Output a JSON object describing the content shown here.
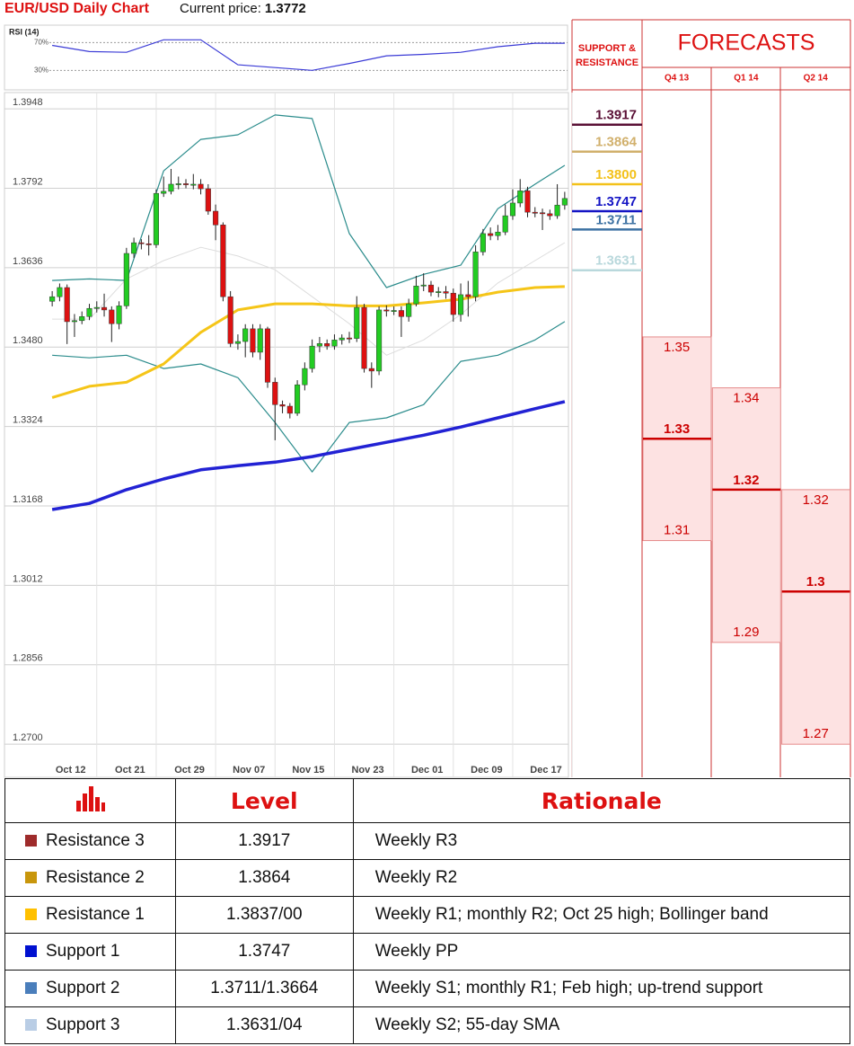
{
  "header": {
    "title": "EUR/USD Daily Chart",
    "price_label": "Current price:",
    "price": "1.3772"
  },
  "chart_data": [
    {
      "type": "line",
      "title": "RSI (14)",
      "color": "#3b3bd6",
      "ylim": [
        2,
        95
      ],
      "yticks": [
        {
          "value": 70,
          "label": "70%"
        },
        {
          "value": 30,
          "label": "30%"
        }
      ],
      "at": [
        0,
        5,
        10,
        15,
        20,
        25,
        30,
        35,
        40,
        45,
        50,
        55,
        60,
        65,
        69
      ],
      "values": [
        66,
        57,
        56,
        74,
        74,
        38,
        34,
        30,
        40,
        51,
        53,
        56,
        64,
        69,
        69
      ]
    },
    {
      "type": "candlestick",
      "ylim": [
        1.2665,
        1.398
      ],
      "grid": true,
      "yticks": [
        {
          "value": 1.3948,
          "label": "1.3948"
        },
        {
          "value": 1.3792,
          "label": "1.3792"
        },
        {
          "value": 1.3636,
          "label": "1.3636"
        },
        {
          "value": 1.348,
          "label": "1.3480"
        },
        {
          "value": 1.3324,
          "label": "1.3324"
        },
        {
          "value": 1.3168,
          "label": "1.3168"
        },
        {
          "value": 1.3012,
          "label": "1.3012"
        },
        {
          "value": 1.2856,
          "label": "1.2856"
        },
        {
          "value": 1.27,
          "label": "1.2700"
        }
      ],
      "categories": [
        null,
        null,
        "Oct 12",
        null,
        null,
        null,
        null,
        null,
        null,
        null,
        "Oct 21",
        null,
        null,
        null,
        null,
        null,
        null,
        null,
        "Oct 29",
        null,
        null,
        null,
        null,
        null,
        null,
        null,
        "Nov 07",
        null,
        null,
        null,
        null,
        null,
        null,
        null,
        "Nov 15",
        null,
        null,
        null,
        null,
        null,
        null,
        null,
        "Nov 23",
        null,
        null,
        null,
        null,
        null,
        null,
        null,
        "Dec 01",
        null,
        null,
        null,
        null,
        null,
        null,
        null,
        "Dec 09",
        null,
        null,
        null,
        null,
        null,
        null,
        null,
        "Dec 17",
        null,
        null,
        null
      ],
      "up_color": "#22cc22",
      "down_color": "#dd1111",
      "open": [
        1.357,
        1.3579,
        1.3597,
        1.353,
        1.3532,
        1.354,
        1.3556,
        1.3558,
        1.3553,
        1.3526,
        1.3561,
        1.3664,
        1.3685,
        1.3683,
        1.3681,
        1.3782,
        1.3786,
        1.38,
        1.3801,
        1.3799,
        1.38,
        1.3791,
        1.3747,
        1.372,
        1.3579,
        1.3487,
        1.3491,
        1.3516,
        1.347,
        1.3516,
        1.3411,
        1.3367,
        1.3364,
        1.335,
        1.3406,
        1.3438,
        1.3482,
        1.3487,
        1.3482,
        1.3494,
        1.3498,
        1.3497,
        1.3558,
        1.3438,
        1.3433,
        1.3553,
        1.3551,
        1.3552,
        1.354,
        1.3565,
        1.36,
        1.3602,
        1.3588,
        1.3589,
        1.3586,
        1.3544,
        1.3583,
        1.3579,
        1.3667,
        1.3703,
        1.3699,
        1.3706,
        1.3738,
        1.3763,
        1.3787,
        1.3745,
        1.3744,
        1.3742,
        1.3738,
        1.3759
      ],
      "high": [
        1.359,
        1.3605,
        1.3603,
        1.3545,
        1.355,
        1.3565,
        1.357,
        1.3585,
        1.356,
        1.357,
        1.3675,
        1.3695,
        1.3692,
        1.37,
        1.379,
        1.3815,
        1.383,
        1.3815,
        1.381,
        1.382,
        1.381,
        1.38,
        1.376,
        1.3725,
        1.359,
        1.3505,
        1.3525,
        1.3525,
        1.3525,
        1.352,
        1.342,
        1.3375,
        1.337,
        1.3415,
        1.345,
        1.3495,
        1.35,
        1.3495,
        1.3505,
        1.3505,
        1.351,
        1.358,
        1.3565,
        1.345,
        1.356,
        1.3562,
        1.356,
        1.356,
        1.3575,
        1.362,
        1.3625,
        1.361,
        1.3598,
        1.36,
        1.3595,
        1.3605,
        1.361,
        1.368,
        1.3712,
        1.3715,
        1.372,
        1.376,
        1.379,
        1.381,
        1.3795,
        1.3755,
        1.3752,
        1.375,
        1.38,
        1.3785
      ],
      "low": [
        1.356,
        1.357,
        1.3486,
        1.35,
        1.3525,
        1.3533,
        1.3548,
        1.354,
        1.349,
        1.3515,
        1.3555,
        1.3655,
        1.3672,
        1.366,
        1.3675,
        1.3775,
        1.378,
        1.379,
        1.3792,
        1.379,
        1.378,
        1.374,
        1.369,
        1.357,
        1.348,
        1.3475,
        1.346,
        1.346,
        1.3455,
        1.34,
        1.3297,
        1.335,
        1.334,
        1.3345,
        1.3395,
        1.343,
        1.347,
        1.3475,
        1.3475,
        1.3485,
        1.3488,
        1.349,
        1.343,
        1.34,
        1.3425,
        1.354,
        1.3543,
        1.35,
        1.353,
        1.356,
        1.359,
        1.358,
        1.3578,
        1.3575,
        1.353,
        1.353,
        1.354,
        1.357,
        1.366,
        1.369,
        1.369,
        1.37,
        1.373,
        1.3755,
        1.3735,
        1.3735,
        1.371,
        1.373,
        1.3732,
        1.375
      ],
      "close": [
        1.3579,
        1.3597,
        1.353,
        1.3532,
        1.354,
        1.3556,
        1.3558,
        1.3553,
        1.3526,
        1.3561,
        1.3664,
        1.3685,
        1.3683,
        1.3681,
        1.3782,
        1.3786,
        1.38,
        1.3801,
        1.3799,
        1.38,
        1.3791,
        1.3747,
        1.372,
        1.3579,
        1.3487,
        1.3491,
        1.3516,
        1.347,
        1.3516,
        1.3411,
        1.3367,
        1.3364,
        1.335,
        1.3406,
        1.3438,
        1.3482,
        1.3487,
        1.3482,
        1.3494,
        1.3498,
        1.3497,
        1.3558,
        1.3438,
        1.3433,
        1.3553,
        1.3551,
        1.3552,
        1.354,
        1.3565,
        1.36,
        1.3602,
        1.3588,
        1.3589,
        1.3586,
        1.3544,
        1.3583,
        1.3579,
        1.3667,
        1.3703,
        1.3699,
        1.3706,
        1.3738,
        1.3763,
        1.3787,
        1.3745,
        1.3744,
        1.3742,
        1.3738,
        1.3759,
        1.3772
      ],
      "overlays": [
        {
          "color": "#dddddd",
          "width": 1,
          "at": [
            0,
            5,
            10,
            15,
            20,
            25,
            30,
            35,
            40,
            45,
            50,
            55,
            60,
            65,
            69
          ],
          "values": [
            1.3535,
            1.3535,
            1.3614,
            1.365,
            1.3676,
            1.3659,
            1.3632,
            1.3579,
            1.3526,
            1.3464,
            1.3494,
            1.3544,
            1.3606,
            1.365,
            1.3685
          ]
        },
        {
          "color": "#2b8c8c",
          "width": 1.2,
          "at": [
            0,
            5,
            10,
            15,
            20,
            25,
            30,
            35,
            40,
            45,
            50,
            55,
            60,
            65,
            69
          ],
          "values": [
            1.3611,
            1.3614,
            1.3611,
            1.3826,
            1.3888,
            1.3897,
            1.3936,
            1.3929,
            1.3703,
            1.3597,
            1.3623,
            1.3641,
            1.3752,
            1.38,
            1.3837
          ]
        },
        {
          "color": "#2b8c8c",
          "width": 1.2,
          "at": [
            0,
            5,
            10,
            15,
            20,
            25,
            30,
            35,
            40,
            45,
            50,
            55,
            60,
            65,
            69
          ],
          "values": [
            1.3464,
            1.3459,
            1.3464,
            1.3438,
            1.3447,
            1.342,
            1.3332,
            1.3235,
            1.3332,
            1.3341,
            1.3367,
            1.3452,
            1.3464,
            1.3494,
            1.353
          ]
        },
        {
          "color": "#f5c518",
          "width": 3,
          "at": [
            0,
            5,
            10,
            15,
            20,
            25,
            30,
            35,
            40,
            45,
            50,
            55,
            60,
            65,
            69
          ],
          "values": [
            1.3381,
            1.3403,
            1.3411,
            1.3447,
            1.3509,
            1.3553,
            1.3565,
            1.3565,
            1.3561,
            1.3561,
            1.3567,
            1.3574,
            1.3588,
            1.3597,
            1.3599
          ]
        },
        {
          "color": "#2222d4",
          "width": 3.5,
          "at": [
            0,
            5,
            10,
            15,
            20,
            25,
            30,
            35,
            40,
            45,
            50,
            55,
            60,
            65,
            69
          ],
          "values": [
            1.3161,
            1.3173,
            1.32,
            1.3221,
            1.3239,
            1.3247,
            1.3254,
            1.3265,
            1.3279,
            1.3293,
            1.3307,
            1.3323,
            1.3341,
            1.3359,
            1.3373
          ]
        }
      ]
    },
    {
      "type": "levels",
      "title": "SUPPORT & RESISTANCE",
      "values": [
        1.3917,
        1.3864,
        1.38,
        1.3747,
        1.3711,
        1.3631
      ],
      "value_labels": [
        "1.3917",
        "1.3864",
        "1.3800",
        "1.3747",
        "1.3711",
        "1.3631"
      ],
      "colors": [
        "#5a1035",
        "#d1b06c",
        "#f3c11a",
        "#1414c4",
        "#3d72a3",
        "#b9d8dc"
      ]
    },
    {
      "type": "range",
      "title": "FORECASTS",
      "categories": [
        "Q4 13",
        "Q1 14",
        "Q2 14"
      ],
      "high": [
        1.35,
        1.34,
        1.32
      ],
      "mid": [
        1.33,
        1.32,
        1.3
      ],
      "low": [
        1.31,
        1.29,
        1.27
      ],
      "color": "#cc0000",
      "fill": "#fde2e2"
    }
  ],
  "table": {
    "header": [
      "Level",
      "Rationale"
    ],
    "rows": [
      {
        "name": "Resistance 3",
        "level": "1.3917",
        "rationale": "Weekly R3",
        "color": "#9e2b2b"
      },
      {
        "name": "Resistance 2",
        "level": "1.3864",
        "rationale": "Weekly R2",
        "color": "#c8960c"
      },
      {
        "name": "Resistance 1",
        "level": "1.3837/00",
        "rationale": "Weekly R1; monthly R2; Oct 25 high; Bollinger band",
        "color": "#ffc000"
      },
      {
        "name": "Support 1",
        "level": "1.3747",
        "rationale": "Weekly PP",
        "color": "#0010d0"
      },
      {
        "name": "Support 2",
        "level": "1.3711/1.3664",
        "rationale": "Weekly S1; monthly R1; Feb high; up-trend support",
        "color": "#4a7ebb"
      },
      {
        "name": "Support 3",
        "level": "1.3631/04",
        "rationale": "Weekly S2; 55-day SMA",
        "color": "#b9cde5"
      }
    ]
  }
}
